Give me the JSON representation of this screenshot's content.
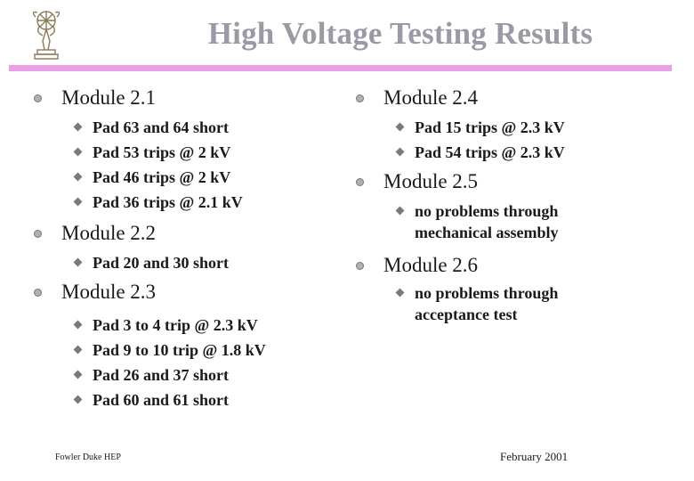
{
  "slide": {
    "title": "High Voltage Testing Results",
    "logo_icon": "emmy-statuette-logo",
    "accent_color": "#e9a0e6",
    "title_color": "#9a9aa6"
  },
  "left_column": [
    {
      "heading": "Module 2.1",
      "items": [
        "Pad 63 and 64 short",
        "Pad 53 trips @ 2 kV",
        "Pad 46 trips @ 2 kV",
        "Pad 36 trips @ 2.1 kV"
      ]
    },
    {
      "heading": "Module 2.2",
      "items": [
        "Pad 20 and 30 short"
      ]
    },
    {
      "heading": "Module 2.3",
      "items": [
        "Pad 3 to 4 trip @ 2.3 kV",
        "Pad 9 to 10 trip @ 1.8 kV",
        "Pad 26 and 37 short",
        "Pad 60 and 61 short"
      ]
    }
  ],
  "right_column": [
    {
      "heading": "Module 2.4",
      "items": [
        "Pad 15 trips @ 2.3 kV",
        "Pad 54 trips @ 2.3 kV"
      ]
    },
    {
      "heading": "Module 2.5",
      "items": [
        "no problems through",
        "mechanical assembly"
      ]
    },
    {
      "heading": "Module 2.6",
      "items": [
        "no problems through",
        "acceptance test"
      ]
    }
  ],
  "footer": {
    "left": "Fowler Duke HEP",
    "right": "February 2001"
  }
}
